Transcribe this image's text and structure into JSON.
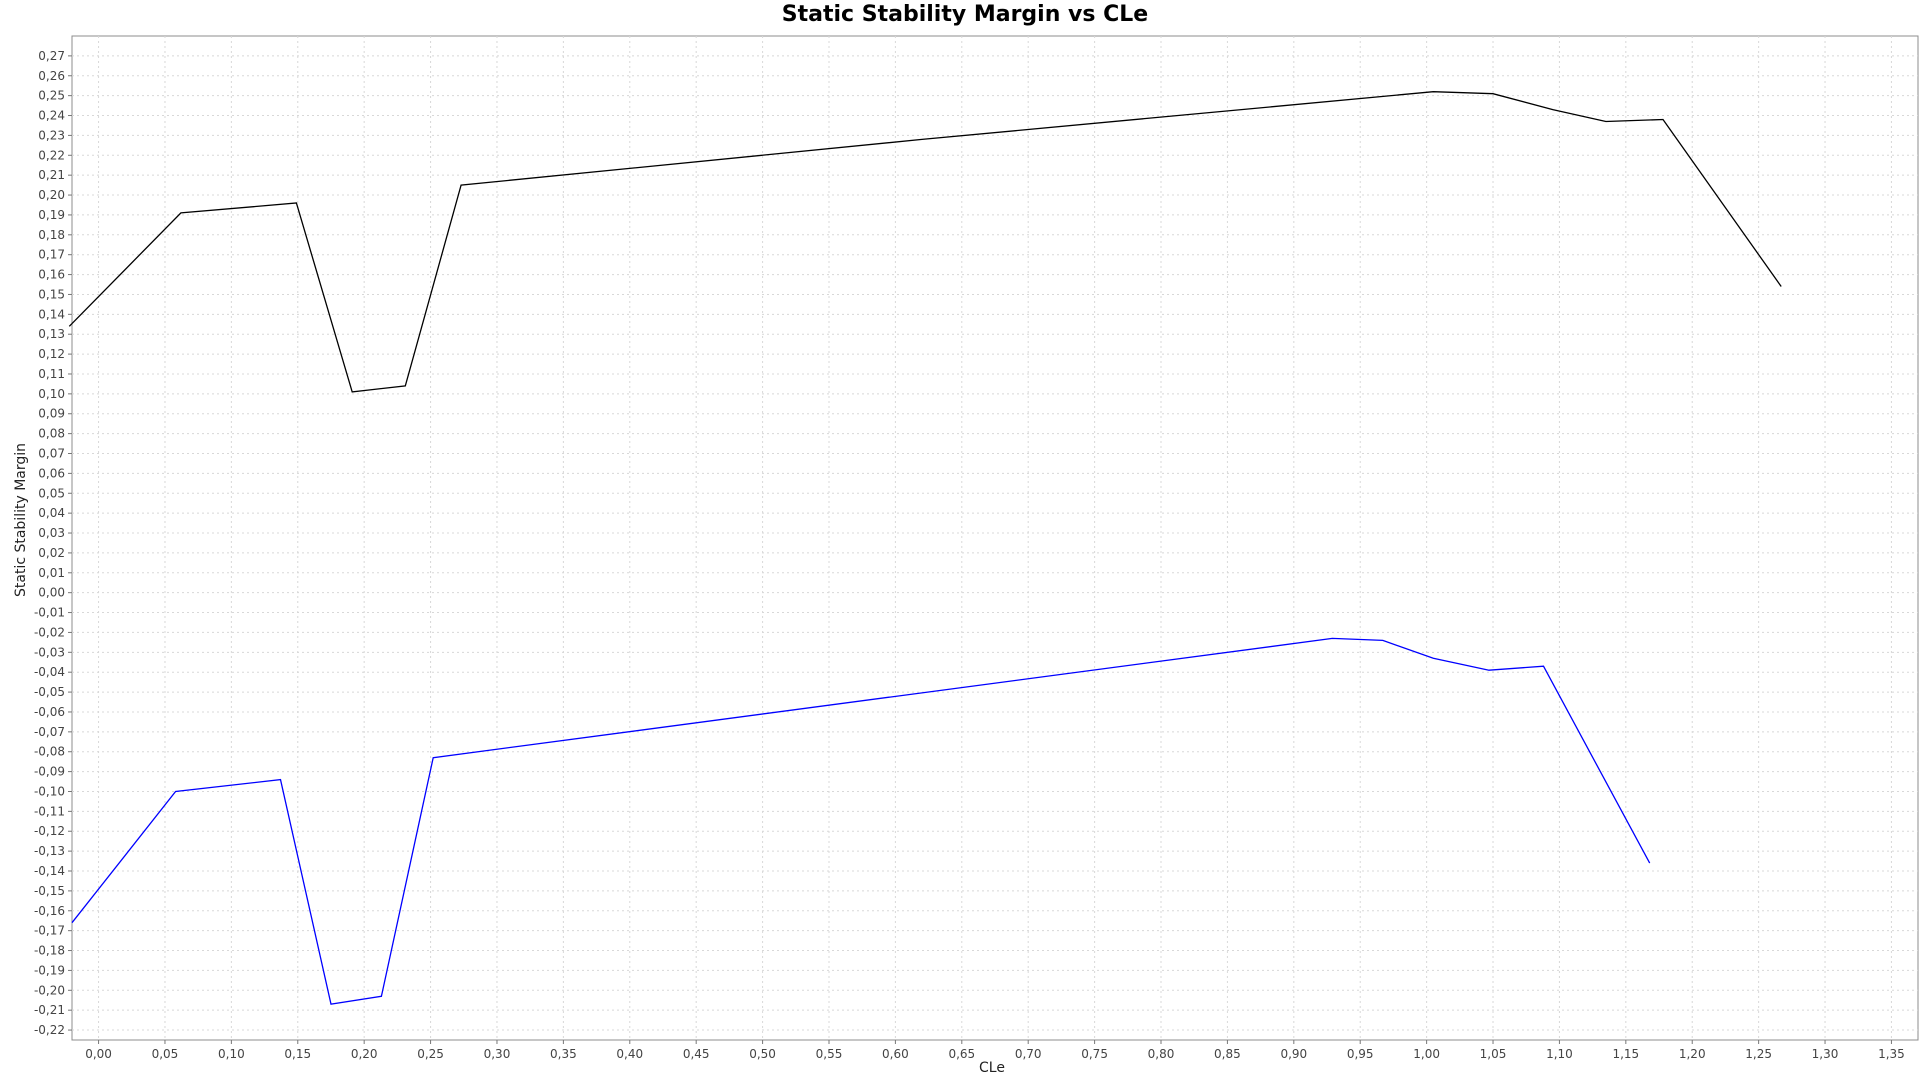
{
  "chart_data": {
    "type": "line",
    "title": "Static Stability Margin vs CLe",
    "xlabel": "CLe",
    "ylabel": "Static Stability Margin",
    "xlim": [
      -0.02,
      1.37
    ],
    "ylim": [
      -0.225,
      0.28
    ],
    "x_ticks": [
      "0,00",
      "0,05",
      "0,10",
      "0,15",
      "0,20",
      "0,25",
      "0,30",
      "0,35",
      "0,40",
      "0,45",
      "0,50",
      "0,55",
      "0,60",
      "0,65",
      "0,70",
      "0,75",
      "0,80",
      "0,85",
      "0,90",
      "0,95",
      "1,00",
      "1,05",
      "1,10",
      "1,15",
      "1,20",
      "1,25",
      "1,30",
      "1,35"
    ],
    "y_ticks": [
      "0,27",
      "0,26",
      "0,25",
      "0,24",
      "0,23",
      "0,22",
      "0,21",
      "0,20",
      "0,19",
      "0,18",
      "0,17",
      "0,16",
      "0,15",
      "0,14",
      "0,13",
      "0,12",
      "0,11",
      "0,10",
      "0,09",
      "0,08",
      "0,07",
      "0,06",
      "0,05",
      "0,04",
      "0,03",
      "0,02",
      "0,01",
      "0,00",
      "-0,01",
      "-0,02",
      "-0,03",
      "-0,04",
      "-0,05",
      "-0,06",
      "-0,07",
      "-0,08",
      "-0,09",
      "-0,10",
      "-0,11",
      "-0,12",
      "-0,13",
      "-0,14",
      "-0,15",
      "-0,16",
      "-0,17",
      "-0,18",
      "-0,19",
      "-0,20",
      "-0,21",
      "-0,22"
    ],
    "grid": true,
    "series": [
      {
        "color": "#000000",
        "points": [
          [
            -0.022,
            0.134
          ],
          [
            0.062,
            0.191
          ],
          [
            0.149,
            0.196
          ],
          [
            0.191,
            0.101
          ],
          [
            0.231,
            0.104
          ],
          [
            0.273,
            0.205
          ],
          [
            0.62,
            0.228
          ],
          [
            1.005,
            0.252
          ],
          [
            1.05,
            0.251
          ],
          [
            1.095,
            0.243
          ],
          [
            1.135,
            0.237
          ],
          [
            1.178,
            0.238
          ],
          [
            1.267,
            0.154
          ]
        ]
      },
      {
        "color": "#0000ff",
        "points": [
          [
            -0.02,
            -0.166
          ],
          [
            0.058,
            -0.1
          ],
          [
            0.137,
            -0.094
          ],
          [
            0.175,
            -0.207
          ],
          [
            0.213,
            -0.203
          ],
          [
            0.252,
            -0.083
          ],
          [
            0.929,
            -0.023
          ],
          [
            0.967,
            -0.024
          ],
          [
            1.005,
            -0.033
          ],
          [
            1.047,
            -0.039
          ],
          [
            1.088,
            -0.037
          ],
          [
            1.168,
            -0.136
          ]
        ]
      }
    ]
  }
}
